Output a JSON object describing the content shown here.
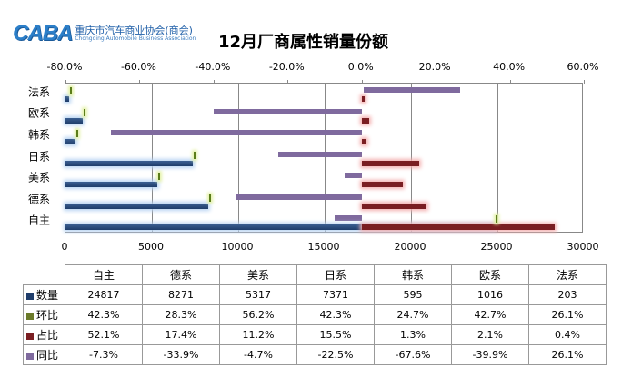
{
  "header": {
    "logo_mark": "CABA",
    "logo_cn": "重庆市汽车商业协会(商会)",
    "logo_en": "Chongqing Automobile Business Association",
    "title": "12月厂商属性销量份额"
  },
  "axes": {
    "top_ticks": [
      "-80.0%",
      "-60.0%",
      "-40.0%",
      "-20.0%",
      "0.0%",
      "20.0%",
      "40.0%",
      "60.0%"
    ],
    "bottom_ticks": [
      "0",
      "5000",
      "10000",
      "15000",
      "20000",
      "25000",
      "30000"
    ]
  },
  "legend": {
    "count": "数量",
    "mom": "环比",
    "share": "占比",
    "yoy": "同比"
  },
  "colors": {
    "count": "#1f3d6b",
    "mom": "#6b7a2a",
    "share": "#7a1e22",
    "yoy": "#7f6a9e"
  },
  "table": {
    "columns": [
      "自主",
      "德系",
      "美系",
      "日系",
      "韩系",
      "欧系",
      "法系"
    ],
    "rows": [
      {
        "label": "数量",
        "values": [
          "24817",
          "8271",
          "5317",
          "7371",
          "595",
          "1016",
          "203"
        ]
      },
      {
        "label": "环比",
        "values": [
          "42.3%",
          "28.3%",
          "56.2%",
          "42.3%",
          "24.7%",
          "42.7%",
          "26.1%"
        ]
      },
      {
        "label": "占比",
        "values": [
          "52.1%",
          "17.4%",
          "11.2%",
          "15.5%",
          "1.3%",
          "2.1%",
          "0.4%"
        ]
      },
      {
        "label": "同比",
        "values": [
          "-7.3%",
          "-33.9%",
          "-4.7%",
          "-22.5%",
          "-67.6%",
          "-39.9%",
          "26.1%"
        ]
      }
    ]
  },
  "chart_data": {
    "type": "bar",
    "orientation": "horizontal",
    "title": "12月厂商属性销量份额",
    "categories": [
      "自主",
      "德系",
      "美系",
      "日系",
      "韩系",
      "欧系",
      "法系"
    ],
    "series": [
      {
        "name": "数量",
        "axis": "bottom",
        "values": [
          24817,
          8271,
          5317,
          7371,
          595,
          1016,
          203
        ]
      },
      {
        "name": "环比",
        "axis": "top",
        "unit": "%",
        "values": [
          42.3,
          28.3,
          56.2,
          42.3,
          24.7,
          42.7,
          26.1
        ]
      },
      {
        "name": "占比",
        "axis": "top",
        "unit": "%",
        "values": [
          52.1,
          17.4,
          11.2,
          15.5,
          1.3,
          2.1,
          0.4
        ]
      },
      {
        "name": "同比",
        "axis": "top",
        "unit": "%",
        "values": [
          -7.3,
          -33.9,
          -4.7,
          -22.5,
          -67.6,
          -39.9,
          26.1
        ]
      }
    ],
    "x_bottom_range": [
      0,
      30000
    ],
    "x_top_range": [
      -80,
      60
    ],
    "x_bottom_ticks": [
      0,
      5000,
      10000,
      15000,
      20000,
      25000,
      30000
    ],
    "x_top_ticks": [
      -80,
      -60,
      -40,
      -20,
      0,
      20,
      40,
      60
    ],
    "grid": true,
    "legend_position": "data-table"
  }
}
